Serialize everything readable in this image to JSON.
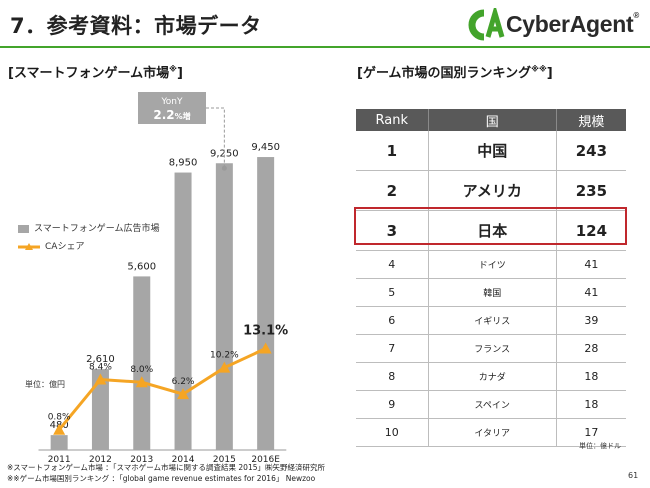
{
  "slide": {
    "title": "7．参考資料：市場データ",
    "page_number": "61"
  },
  "logo": {
    "text": "CyberAgent",
    "reg_mark": "®",
    "color": "#43a42b"
  },
  "left": {
    "heading": "[スマートフォンゲーム市場",
    "heading_mark": "※",
    "heading_close": "]",
    "unit": "単位：億円",
    "legend": {
      "market": "スマートフォンゲーム広告市場",
      "share": "CAシェア"
    }
  },
  "right": {
    "heading": "[ゲーム市場の国別ランキング",
    "heading_mark": "※※",
    "heading_close": "]",
    "unit": "単位：億ドル",
    "columns": [
      "Rank",
      "国",
      "規模"
    ],
    "rows": [
      {
        "rank": "1",
        "country": "中国",
        "size": "243"
      },
      {
        "rank": "2",
        "country": "アメリカ",
        "size": "235"
      },
      {
        "rank": "3",
        "country": "日本",
        "size": "124"
      },
      {
        "rank": "4",
        "country": "ドイツ",
        "size": "41"
      },
      {
        "rank": "5",
        "country": "韓国",
        "size": "41"
      },
      {
        "rank": "6",
        "country": "イギリス",
        "size": "39"
      },
      {
        "rank": "7",
        "country": "フランス",
        "size": "28"
      },
      {
        "rank": "8",
        "country": "カナダ",
        "size": "18"
      },
      {
        "rank": "9",
        "country": "スペイン",
        "size": "18"
      },
      {
        "rank": "10",
        "country": "イタリア",
        "size": "17"
      }
    ],
    "highlight_rank": "3"
  },
  "footnotes": {
    "line1": "※スマートフォンゲーム市場 ：「スマホゲーム市場に関する調査結果 2015」㈱矢野経済研究所",
    "line2": "※※ゲーム市場国別ランキング ：「global game revenue estimates for 2016」 Newzoo"
  },
  "chart_data": {
    "type": "bar",
    "categories": [
      "2011",
      "2012",
      "2013",
      "2014",
      "2015",
      "2016E"
    ],
    "series": [
      {
        "name": "スマートフォンゲーム広告市場",
        "kind": "bar",
        "values": [
          480,
          2610,
          5600,
          8950,
          9250,
          9450
        ],
        "labels": [
          "480",
          "2,610",
          "5,600",
          "8,950",
          "9,250",
          "9,450"
        ],
        "color": "#a6a6a6"
      },
      {
        "name": "CAシェア",
        "kind": "line",
        "values": [
          0.8,
          8.4,
          8.0,
          6.2,
          10.2,
          13.1
        ],
        "labels": [
          "0.8%",
          "8.4%",
          "8.0%",
          "6.2%",
          "10.2%",
          "13.1%"
        ],
        "color": "#f5a524"
      }
    ],
    "yoy_callout": {
      "label": "YonY",
      "value": "2.2",
      "suffix": "%増"
    },
    "ylim_bar": [
      0,
      10000
    ],
    "ylim_share": [
      0,
      14
    ]
  }
}
